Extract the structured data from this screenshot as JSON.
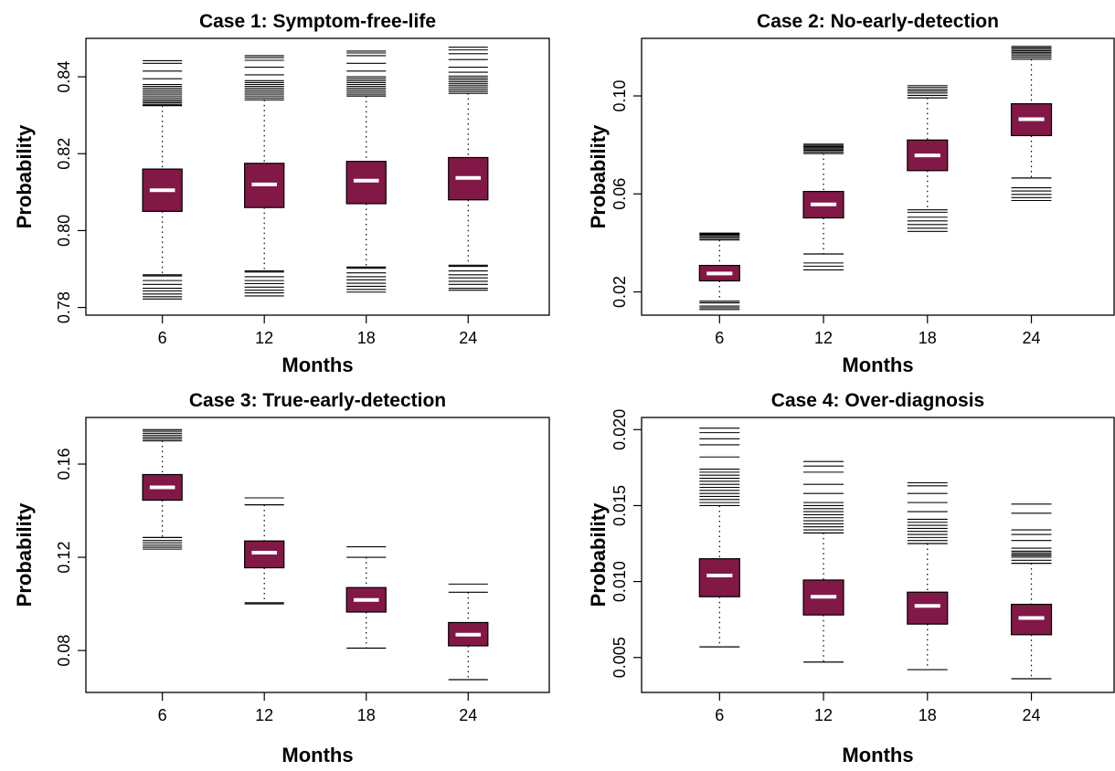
{
  "colors": {
    "box_fill": "#811845",
    "median": "#ffffff",
    "stroke": "#000000",
    "background": "#ffffff"
  },
  "chart_data": [
    {
      "type": "box",
      "title": "Case 1: Symptom-free-life",
      "xlabel": "Months",
      "ylabel": "Probability",
      "categories": [
        "6",
        "12",
        "18",
        "24"
      ],
      "yticks": [
        0.78,
        0.8,
        0.82,
        0.84
      ],
      "ytick_labels": [
        "0.78",
        "0.80",
        "0.82",
        "0.84"
      ],
      "ylim": [
        0.778,
        0.85
      ],
      "boxes": [
        {
          "q1": 0.805,
          "median": 0.8105,
          "q3": 0.816,
          "whisker_low": 0.7885,
          "whisker_high": 0.8325,
          "outliers_low": [
            0.7882,
            0.787,
            0.786,
            0.785,
            0.7843,
            0.7835,
            0.7828,
            0.7822
          ],
          "outliers_high": [
            0.8328,
            0.8332,
            0.8336,
            0.834,
            0.8345,
            0.835,
            0.8355,
            0.836,
            0.8365,
            0.837,
            0.8375,
            0.838,
            0.8395,
            0.8415,
            0.8435,
            0.8442
          ]
        },
        {
          "q1": 0.806,
          "median": 0.812,
          "q3": 0.8175,
          "whisker_low": 0.7895,
          "whisker_high": 0.834,
          "outliers_low": [
            0.7892,
            0.788,
            0.787,
            0.7862,
            0.7853,
            0.7845,
            0.7838,
            0.783
          ],
          "outliers_high": [
            0.8345,
            0.835,
            0.8355,
            0.836,
            0.8365,
            0.837,
            0.8375,
            0.838,
            0.8385,
            0.839,
            0.8405,
            0.8425,
            0.8443,
            0.845,
            0.8455
          ]
        },
        {
          "q1": 0.807,
          "median": 0.813,
          "q3": 0.818,
          "whisker_low": 0.7905,
          "whisker_high": 0.835,
          "outliers_low": [
            0.7902,
            0.789,
            0.788,
            0.7872,
            0.7863,
            0.7855,
            0.7847,
            0.784
          ],
          "outliers_high": [
            0.8355,
            0.836,
            0.8365,
            0.837,
            0.8375,
            0.838,
            0.8385,
            0.839,
            0.8395,
            0.84,
            0.8415,
            0.8435,
            0.8455,
            0.8462,
            0.8467
          ]
        },
        {
          "q1": 0.808,
          "median": 0.8137,
          "q3": 0.819,
          "whisker_low": 0.791,
          "whisker_high": 0.8357,
          "outliers_low": [
            0.7907,
            0.7895,
            0.7885,
            0.7877,
            0.7868,
            0.786,
            0.785,
            0.7845
          ],
          "outliers_high": [
            0.8362,
            0.8367,
            0.8372,
            0.8377,
            0.8382,
            0.8387,
            0.8392,
            0.8397,
            0.8402,
            0.8412,
            0.8425,
            0.8445,
            0.846,
            0.847,
            0.8477
          ]
        }
      ]
    },
    {
      "type": "box",
      "title": "Case 2: No-early-detection",
      "xlabel": "Months",
      "ylabel": "Probability",
      "categories": [
        "6",
        "12",
        "18",
        "24"
      ],
      "yticks": [
        0.02,
        0.06,
        0.1
      ],
      "ytick_labels": [
        "0.02",
        "0.06",
        "0.10"
      ],
      "ylim": [
        0.0105,
        0.1235
      ],
      "boxes": [
        {
          "q1": 0.0245,
          "median": 0.0275,
          "q3": 0.0308,
          "whisker_low": 0.0162,
          "whisker_high": 0.0412,
          "outliers_low": [
            0.0155,
            0.0142,
            0.0135,
            0.0128
          ],
          "outliers_high": [
            0.0418,
            0.0424,
            0.043,
            0.0434,
            0.0437,
            0.044
          ]
        },
        {
          "q1": 0.0502,
          "median": 0.0557,
          "q3": 0.061,
          "whisker_low": 0.0355,
          "whisker_high": 0.0765,
          "outliers_low": [
            0.0318,
            0.0305,
            0.029
          ],
          "outliers_high": [
            0.0772,
            0.0778,
            0.0783,
            0.0788,
            0.0793,
            0.0798,
            0.0803
          ]
        },
        {
          "q1": 0.0695,
          "median": 0.0757,
          "q3": 0.082,
          "whisker_low": 0.0535,
          "whisker_high": 0.0992,
          "outliers_low": [
            0.0525,
            0.0505,
            0.049,
            0.0475,
            0.046,
            0.0447
          ],
          "outliers_high": [
            0.1002,
            0.1012,
            0.102,
            0.1027,
            0.1035,
            0.1042
          ]
        },
        {
          "q1": 0.0838,
          "median": 0.0905,
          "q3": 0.0968,
          "whisker_low": 0.0665,
          "whisker_high": 0.115,
          "outliers_low": [
            0.0625,
            0.0612,
            0.0598,
            0.0585,
            0.0573
          ],
          "outliers_high": [
            0.1158,
            0.1165,
            0.1172,
            0.1178,
            0.1184,
            0.119,
            0.1196,
            0.1202
          ]
        }
      ]
    },
    {
      "type": "box",
      "title": "Case 3: True-early-detection",
      "xlabel": "Months",
      "ylabel": "Probability",
      "categories": [
        "6",
        "12",
        "18",
        "24"
      ],
      "yticks": [
        0.08,
        0.12,
        0.16
      ],
      "ytick_labels": [
        "0.08",
        "0.12",
        "0.16"
      ],
      "ylim": [
        0.062,
        0.18
      ],
      "boxes": [
        {
          "q1": 0.1445,
          "median": 0.15,
          "q3": 0.1555,
          "whisker_low": 0.1285,
          "whisker_high": 0.17,
          "outliers_low": [
            0.1272,
            0.1262,
            0.1252,
            0.1243,
            0.1235
          ],
          "outliers_high": [
            0.1708,
            0.1716,
            0.1724,
            0.1732,
            0.1741,
            0.1748
          ]
        },
        {
          "q1": 0.1155,
          "median": 0.122,
          "q3": 0.127,
          "whisker_low": 0.1005,
          "whisker_high": 0.1425,
          "outliers_low": [
            0.1
          ],
          "outliers_high": [
            0.1455
          ]
        },
        {
          "q1": 0.0965,
          "median": 0.1017,
          "q3": 0.107,
          "whisker_low": 0.081,
          "whisker_high": 0.12,
          "outliers_low": [],
          "outliers_high": [
            0.1245
          ]
        },
        {
          "q1": 0.082,
          "median": 0.0868,
          "q3": 0.092,
          "whisker_low": 0.0675,
          "whisker_high": 0.105,
          "outliers_low": [],
          "outliers_high": [
            0.1085
          ]
        }
      ]
    },
    {
      "type": "box",
      "title": "Case 4: Over-diagnosis",
      "xlabel": "Months",
      "ylabel": "Probability",
      "categories": [
        "6",
        "12",
        "18",
        "24"
      ],
      "yticks": [
        0.005,
        0.01,
        0.015,
        0.02
      ],
      "ytick_labels": [
        "0.005",
        "0.010",
        "0.015",
        "0.020"
      ],
      "ylim": [
        0.0027,
        0.0208
      ],
      "boxes": [
        {
          "q1": 0.009,
          "median": 0.0104,
          "q3": 0.0115,
          "whisker_low": 0.0057,
          "whisker_high": 0.015,
          "outliers_low": [],
          "outliers_high": [
            0.0152,
            0.0154,
            0.0156,
            0.0158,
            0.016,
            0.0162,
            0.0164,
            0.0166,
            0.0168,
            0.017,
            0.0172,
            0.0174,
            0.0182,
            0.019,
            0.0194,
            0.0198,
            0.0201
          ]
        },
        {
          "q1": 0.0078,
          "median": 0.009,
          "q3": 0.0101,
          "whisker_low": 0.0047,
          "whisker_high": 0.0132,
          "outliers_low": [],
          "outliers_high": [
            0.0134,
            0.0136,
            0.0138,
            0.014,
            0.0142,
            0.0144,
            0.0146,
            0.0148,
            0.015,
            0.0152,
            0.0158,
            0.0164,
            0.0172,
            0.0176,
            0.0179
          ]
        },
        {
          "q1": 0.0072,
          "median": 0.0084,
          "q3": 0.0093,
          "whisker_low": 0.0042,
          "whisker_high": 0.0125,
          "outliers_low": [],
          "outliers_high": [
            0.0127,
            0.0129,
            0.0131,
            0.0133,
            0.0135,
            0.0137,
            0.0139,
            0.0141,
            0.0146,
            0.0152,
            0.0158,
            0.0163,
            0.0165
          ]
        },
        {
          "q1": 0.0065,
          "median": 0.0076,
          "q3": 0.0085,
          "whisker_low": 0.0036,
          "whisker_high": 0.0112,
          "outliers_low": [],
          "outliers_high": [
            0.0114,
            0.0116,
            0.0117,
            0.0118,
            0.0119,
            0.012,
            0.0122,
            0.0127,
            0.0131,
            0.0134,
            0.0145,
            0.0151
          ]
        }
      ]
    }
  ]
}
